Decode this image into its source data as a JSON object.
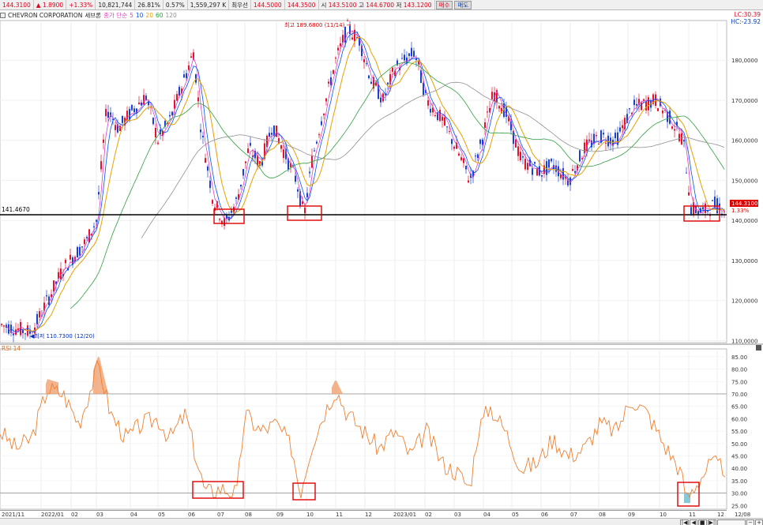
{
  "ticker": {
    "price": "144.3100",
    "change": "▲ 1.8900",
    "change_pct": "+1.33%",
    "volume": "10,821,744",
    "turnover": "26.81%",
    "rate": "0.57%",
    "amount": "1,559,297 K",
    "bid_label": "최우선",
    "bid1": "144.5000",
    "bid2": "144.3500",
    "open_label": "시",
    "open": "143.5100",
    "high_label": "고",
    "high": "144.6700",
    "low_label": "저",
    "low": "143.1200",
    "buy_label": "매수",
    "sell_label": "매도"
  },
  "chart": {
    "name": "CHEVRON CORPORATION",
    "period": "세브론",
    "ma_label": "종가 단순",
    "ma_periods": [
      "5",
      "10",
      "20",
      "60",
      "120"
    ],
    "lc": "LC:30.39",
    "hc": "HC:-23.92",
    "ref_line": "141.4670",
    "high_note": "최고 189.6800 (11/14)",
    "low_note": "최저 110.7300 (12/20)",
    "last_price": "144.3100",
    "last_pct": "1.33%",
    "price_ticks": [
      "180,0000",
      "170,0000",
      "160,0000",
      "150,0000",
      "140,0000",
      "130,0000",
      "120,0000",
      "110,0000"
    ],
    "rsi_label": "RSI 14",
    "rsi_ticks": [
      "85.00",
      "80.00",
      "75.00",
      "70.00",
      "65.00",
      "60.00",
      "55.00",
      "50.00",
      "45.00",
      "40.00",
      "35.00",
      "30.00",
      "25.00"
    ],
    "x_labels": [
      "2021/11",
      "2022/01",
      "02",
      "03",
      "04",
      "05",
      "06",
      "07",
      "08",
      "09",
      "10",
      "11",
      "12",
      "2023/01",
      "02",
      "03",
      "04",
      "05",
      "06",
      "07",
      "08",
      "09",
      "10",
      "11",
      "12",
      "12/08"
    ]
  },
  "colors": {
    "up": "#e8112d",
    "down": "#1a3fd6",
    "rsi": "#f08030",
    "box": "#e00000"
  },
  "icons": {
    "prev": "skip-back-icon",
    "play": "play-icon",
    "stop": "stop-icon",
    "next": "skip-forward-icon",
    "zoom_out": "minus-icon",
    "zoom_in": "plus-icon"
  }
}
